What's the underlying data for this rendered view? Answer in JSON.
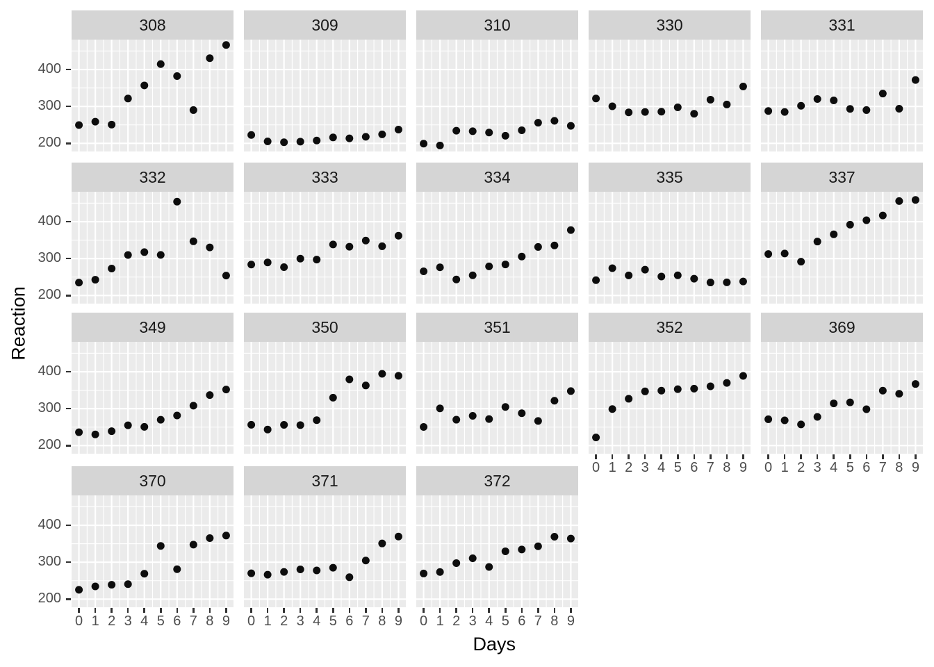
{
  "chart_data": {
    "type": "scatter",
    "title": "",
    "xlabel": "Days",
    "ylabel": "Reaction",
    "x": [
      0,
      1,
      2,
      3,
      4,
      5,
      6,
      7,
      8,
      9
    ],
    "x_ticks": [
      "0",
      "1",
      "2",
      "3",
      "4",
      "5",
      "6",
      "7",
      "8",
      "9"
    ],
    "y_ticks": [
      "200",
      "300",
      "400"
    ],
    "y_tick_values": [
      200,
      300,
      400
    ],
    "y_minor_values": [
      250,
      350,
      450
    ],
    "xlim": [
      -0.45,
      9.45
    ],
    "ylim": [
      178,
      481
    ],
    "grid": "white major and minor gridlines on grey panels",
    "legend_position": "none",
    "facet_columns": 5,
    "facets": [
      {
        "label": "308",
        "values": [
          249.6,
          258.7,
          250.8,
          321.4,
          356.9,
          414.7,
          382.2,
          290.1,
          430.6,
          466.4
        ]
      },
      {
        "label": "309",
        "values": [
          222.7,
          205.3,
          203.0,
          204.7,
          207.7,
          216.0,
          213.6,
          217.7,
          224.3,
          237.3
        ]
      },
      {
        "label": "310",
        "values": [
          199.1,
          194.3,
          234.3,
          232.8,
          229.3,
          220.5,
          235.4,
          255.8,
          261.0,
          247.5
        ]
      },
      {
        "label": "330",
        "values": [
          321.5,
          300.4,
          283.9,
          285.1,
          285.8,
          297.6,
          280.2,
          318.3,
          305.3,
          354.0
        ]
      },
      {
        "label": "331",
        "values": [
          287.6,
          285.0,
          301.8,
          320.1,
          316.3,
          293.3,
          290.1,
          334.8,
          293.7,
          371.6
        ]
      },
      {
        "label": "332",
        "values": [
          234.9,
          242.8,
          273.0,
          309.8,
          317.5,
          310.0,
          454.2,
          346.8,
          330.3,
          253.9
        ]
      },
      {
        "label": "333",
        "values": [
          283.8,
          289.6,
          276.8,
          299.8,
          297.2,
          338.2,
          332.2,
          348.8,
          333.4,
          362.0
        ]
      },
      {
        "label": "334",
        "values": [
          265.5,
          276.4,
          243.4,
          254.7,
          279.0,
          284.2,
          305.5,
          331.5,
          335.7,
          377.3
        ]
      },
      {
        "label": "335",
        "values": [
          241.6,
          273.9,
          254.5,
          270.0,
          251.5,
          254.6,
          245.5,
          235.3,
          235.6,
          237.9
        ]
      },
      {
        "label": "337",
        "values": [
          312.3,
          313.8,
          291.6,
          346.1,
          365.7,
          391.8,
          403.9,
          416.8,
          455.9,
          458.9
        ]
      },
      {
        "label": "349",
        "values": [
          236.1,
          230.3,
          238.9,
          254.9,
          250.7,
          269.9,
          281.6,
          308.1,
          336.8,
          351.8
        ]
      },
      {
        "label": "350",
        "values": [
          256.3,
          243.5,
          256.2,
          255.5,
          268.8,
          329.7,
          379.4,
          362.8,
          394.5,
          389.0
        ]
      },
      {
        "label": "351",
        "values": [
          250.5,
          300.7,
          270.1,
          280.5,
          271.8,
          304.6,
          287.7,
          266.6,
          321.5,
          347.6
        ]
      },
      {
        "label": "352",
        "values": [
          222.0,
          299.0,
          326.8,
          346.8,
          348.7,
          352.8,
          354.2,
          360.5,
          369.7,
          388.7
        ]
      },
      {
        "label": "369",
        "values": [
          271.3,
          268.4,
          257.2,
          277.7,
          314.3,
          317.1,
          298.5,
          348.8,
          340.4,
          366.8
        ]
      },
      {
        "label": "370",
        "values": [
          225.3,
          234.5,
          238.9,
          240.5,
          268.9,
          344.2,
          281.1,
          347.6,
          365.2,
          372.2
        ]
      },
      {
        "label": "371",
        "values": [
          269.9,
          266.2,
          273.8,
          280.6,
          277.7,
          285.0,
          259.3,
          304.6,
          350.8,
          369.5
        ]
      },
      {
        "label": "372",
        "values": [
          269.4,
          273.5,
          297.6,
          310.6,
          287.2,
          329.6,
          334.5,
          343.2,
          369.1,
          364.1
        ]
      }
    ]
  },
  "style": {
    "panel_bg": "#EBEBEB",
    "strip_bg": "#D5D5D5",
    "grid_color": "#FFFFFF",
    "point_color": "#0D0D0D",
    "tick_label_color": "#4D4D4D",
    "tick_mark_color": "#333333",
    "axis_title_color": "#000000",
    "background": "#FFFFFF"
  }
}
